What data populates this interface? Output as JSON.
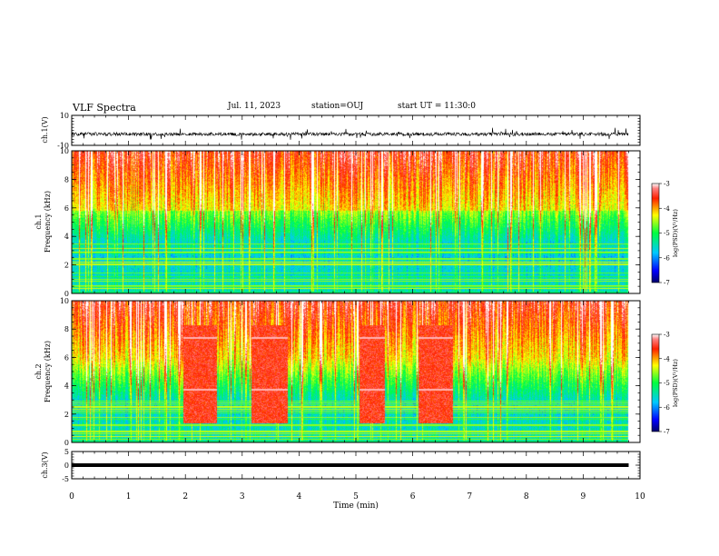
{
  "header": {
    "title": "VLF Spectra",
    "date": "Jul. 11, 2023",
    "station": "station=OUJ",
    "start": "start UT = 11:30:0"
  },
  "chart_data": [
    {
      "type": "line",
      "ylabel": "ch.1(V)",
      "ylim": [
        -10,
        10
      ],
      "ytick_labels": [
        "10",
        "-10"
      ],
      "xlim": [
        0,
        10
      ],
      "baseline": -2.5,
      "color": "#000000"
    },
    {
      "type": "heatmap",
      "ylabel_top": "ch.1",
      "ylabel": "Frequency (kHz)",
      "ylim": [
        0,
        10
      ],
      "ytick_labels": [
        "0",
        "2",
        "4",
        "6",
        "8",
        "10"
      ],
      "xlim": [
        0,
        10
      ],
      "data_end_min": 9.8,
      "colorbar": {
        "label": "log(PSD)(V²/Hz)",
        "range": [
          -7,
          -3
        ],
        "tick_labels": [
          "-3",
          "-4",
          "-5",
          "-6",
          "-7"
        ]
      }
    },
    {
      "type": "heatmap",
      "ylabel_top": "ch.2",
      "ylabel": "Frequency (kHz)",
      "ylim": [
        0,
        10
      ],
      "ytick_labels": [
        "0",
        "2",
        "4",
        "6",
        "8",
        "10"
      ],
      "xlim": [
        0,
        10
      ],
      "data_end_min": 9.8,
      "bursts_min": [
        [
          1.95,
          2.55
        ],
        [
          3.15,
          3.8
        ],
        [
          5.05,
          5.5
        ],
        [
          6.1,
          6.7
        ]
      ],
      "colorbar": {
        "label": "log(PSD)(V²/Hz)",
        "range": [
          -7,
          -3
        ],
        "tick_labels": [
          "-3",
          "-4",
          "-5",
          "-6",
          "-7"
        ]
      }
    },
    {
      "type": "line",
      "ylabel": "ch.3(V)",
      "ylim": [
        -5,
        5
      ],
      "ytick_labels": [
        "5",
        "0",
        "-5"
      ],
      "xlim": [
        0,
        10
      ],
      "baseline": 0,
      "color": "#000000"
    }
  ],
  "xaxis": {
    "label": "Time (min)",
    "tick_labels": [
      "0",
      "1",
      "2",
      "3",
      "4",
      "5",
      "6",
      "7",
      "8",
      "9",
      "10"
    ]
  }
}
